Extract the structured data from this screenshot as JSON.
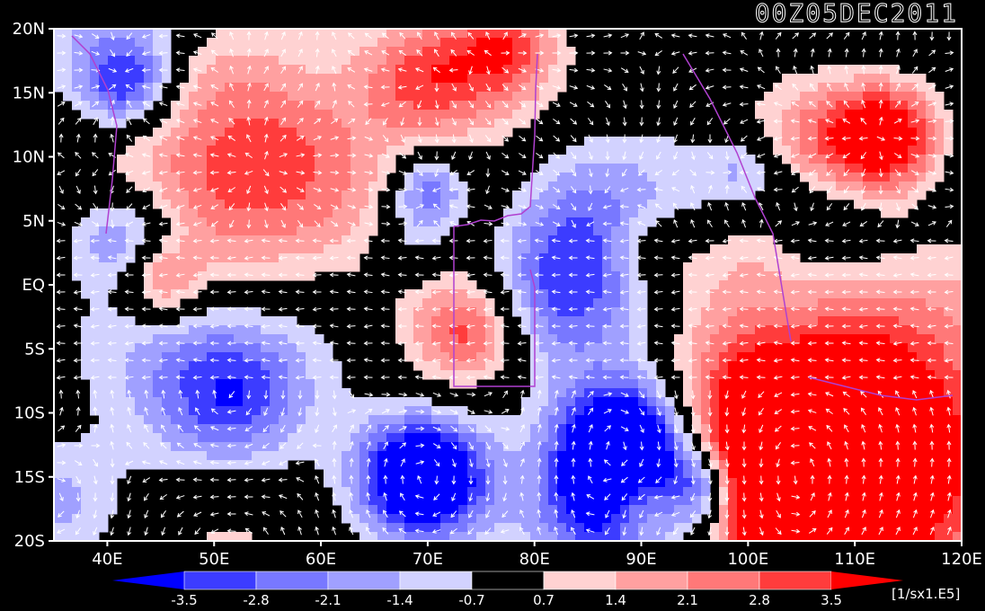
{
  "title": "00Z05DEC2011",
  "lat_labels": [
    "20N",
    "15N",
    "10N",
    "5N",
    "EQ",
    "5S",
    "10S",
    "15S",
    "20S"
  ],
  "lon_labels": [
    "40E",
    "50E",
    "60E",
    "70E",
    "80E",
    "90E",
    "100E",
    "110E",
    "120E"
  ],
  "colorbar": {
    "ticks": [
      "-3.5",
      "-2.8",
      "-2.1",
      "-1.4",
      "-0.7",
      "0.7",
      "1.4",
      "2.1",
      "2.8",
      "3.5"
    ],
    "units": "[1/sx1.E5]",
    "colors": [
      "#0000ff",
      "#3c3cff",
      "#7878ff",
      "#a0a0ff",
      "#d2d2ff",
      "#000000",
      "#ffd2d2",
      "#ffa0a0",
      "#ff7878",
      "#ff3c3c",
      "#ff0000"
    ]
  },
  "map": {
    "lat_range": [
      -20,
      20
    ],
    "lon_range": [
      35,
      120
    ],
    "cyclones": [
      {
        "lon": 69.5,
        "lat": -15.0,
        "sign": "negative"
      },
      {
        "lon": 88.5,
        "lat": -12.5,
        "sign": "negative"
      }
    ]
  }
}
